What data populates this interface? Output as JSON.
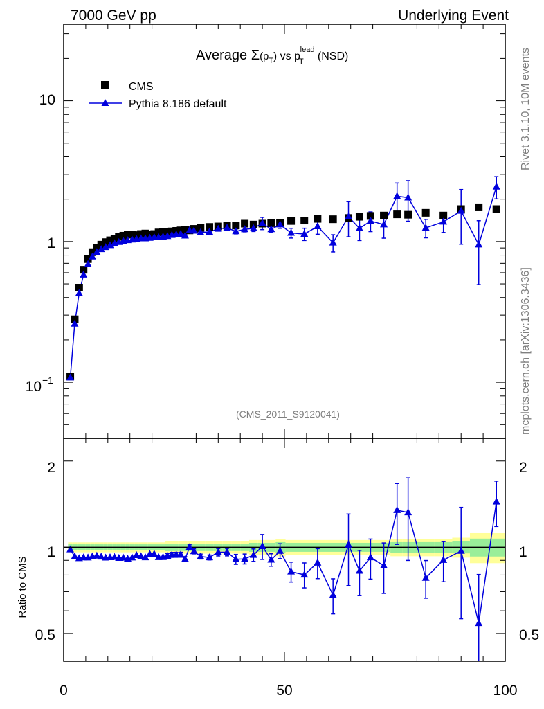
{
  "header": {
    "left": "7000 GeV pp",
    "right": "Underlying Event",
    "side_top": "Rivet 3.1.10,  10M events",
    "side_bottom": "mcplots.cern.ch [arXiv:1306.3436]"
  },
  "chart_data": {
    "type": "scatter",
    "title": "Average Σ(pT) vs pT lead (NSD)",
    "title_parts": {
      "pre": "Average ",
      "sigma": "Σ",
      "p": "(p",
      "t": "T",
      "close": ")",
      "vs": " vs ",
      "p2": "p",
      "t2": "T",
      "lead": "lead",
      "nsd": " (NSD)"
    },
    "analysis_label": "(CMS_2011_S9120041)",
    "legend": [
      {
        "name": "CMS",
        "marker": "square",
        "color": "#000000"
      },
      {
        "name": "Pythia 8.186 default",
        "marker": "triangle",
        "color": "#0000dd"
      }
    ],
    "xlim": [
      0,
      100
    ],
    "ylim_main": [
      0.04,
      35
    ],
    "ylim_ratio": [
      0.4,
      2.4
    ],
    "xscale": "linear",
    "yscale_main": "log",
    "ratio_ylabel": "Ratio to CMS",
    "x_ticks": [
      "0",
      "50",
      "100"
    ],
    "y_ticks_main": [
      {
        "value": 0.1,
        "base": "10",
        "exp": "−1"
      },
      {
        "value": 1,
        "label": "1"
      },
      {
        "value": 10,
        "label": "10"
      }
    ],
    "y_ticks_ratio": [
      "0.5",
      "1",
      "2"
    ],
    "x": [
      1.5,
      2.5,
      3.5,
      4.5,
      5.5,
      6.5,
      7.5,
      8.5,
      9.5,
      10.5,
      11.5,
      12.5,
      13.5,
      14.5,
      15.5,
      16.5,
      17.5,
      18.5,
      19.5,
      20.5,
      21.5,
      22.5,
      23.5,
      24.5,
      25.5,
      26.5,
      27.5,
      28.5,
      29.5,
      31,
      33,
      35,
      37,
      39,
      41,
      43,
      45,
      47,
      49,
      51.5,
      54.5,
      57.5,
      61,
      64.5,
      67,
      69.5,
      72.5,
      75.5,
      78,
      82,
      86,
      90,
      94,
      98
    ],
    "cms": [
      0.11,
      0.28,
      0.47,
      0.63,
      0.75,
      0.84,
      0.9,
      0.95,
      0.99,
      1.02,
      1.05,
      1.08,
      1.1,
      1.12,
      1.12,
      1.11,
      1.13,
      1.14,
      1.12,
      1.13,
      1.16,
      1.17,
      1.17,
      1.18,
      1.19,
      1.2,
      1.21,
      1.2,
      1.23,
      1.25,
      1.27,
      1.28,
      1.3,
      1.3,
      1.34,
      1.32,
      1.34,
      1.35,
      1.36,
      1.4,
      1.41,
      1.45,
      1.44,
      1.47,
      1.5,
      1.52,
      1.53,
      1.56,
      1.55,
      1.6,
      1.53,
      1.7,
      1.75,
      1.7
    ],
    "cms_band_rel": [
      0.04,
      0.04,
      0.04,
      0.04,
      0.04,
      0.04,
      0.04,
      0.04,
      0.04,
      0.04,
      0.04,
      0.04,
      0.04,
      0.04,
      0.04,
      0.04,
      0.04,
      0.04,
      0.04,
      0.04,
      0.04,
      0.04,
      0.05,
      0.05,
      0.05,
      0.05,
      0.05,
      0.05,
      0.05,
      0.05,
      0.05,
      0.05,
      0.05,
      0.05,
      0.05,
      0.06,
      0.06,
      0.06,
      0.07,
      0.06,
      0.06,
      0.06,
      0.06,
      0.06,
      0.06,
      0.06,
      0.06,
      0.07,
      0.07,
      0.07,
      0.07,
      0.08,
      0.12,
      0.12
    ],
    "pythia": [
      0.108,
      0.26,
      0.43,
      0.58,
      0.69,
      0.78,
      0.84,
      0.88,
      0.91,
      0.94,
      0.97,
      0.99,
      1.01,
      1.02,
      1.03,
      1.04,
      1.05,
      1.05,
      1.06,
      1.07,
      1.07,
      1.08,
      1.09,
      1.11,
      1.12,
      1.13,
      1.1,
      1.2,
      1.19,
      1.16,
      1.17,
      1.23,
      1.25,
      1.18,
      1.22,
      1.24,
      1.35,
      1.22,
      1.32,
      1.15,
      1.13,
      1.28,
      0.98,
      1.5,
      1.24,
      1.4,
      1.32,
      2.1,
      2.05,
      1.25,
      1.38,
      1.65,
      0.95,
      2.45
    ],
    "pythia_err_rel": [
      0.01,
      0.01,
      0.01,
      0.01,
      0.01,
      0.01,
      0.01,
      0.01,
      0.01,
      0.01,
      0.01,
      0.01,
      0.01,
      0.01,
      0.01,
      0.01,
      0.01,
      0.01,
      0.01,
      0.01,
      0.01,
      0.01,
      0.02,
      0.02,
      0.02,
      0.02,
      0.02,
      0.02,
      0.02,
      0.02,
      0.02,
      0.03,
      0.03,
      0.04,
      0.04,
      0.05,
      0.1,
      0.05,
      0.06,
      0.08,
      0.1,
      0.12,
      0.14,
      0.28,
      0.18,
      0.16,
      0.2,
      0.24,
      0.32,
      0.15,
      0.16,
      0.42,
      0.48,
      0.18
    ]
  }
}
